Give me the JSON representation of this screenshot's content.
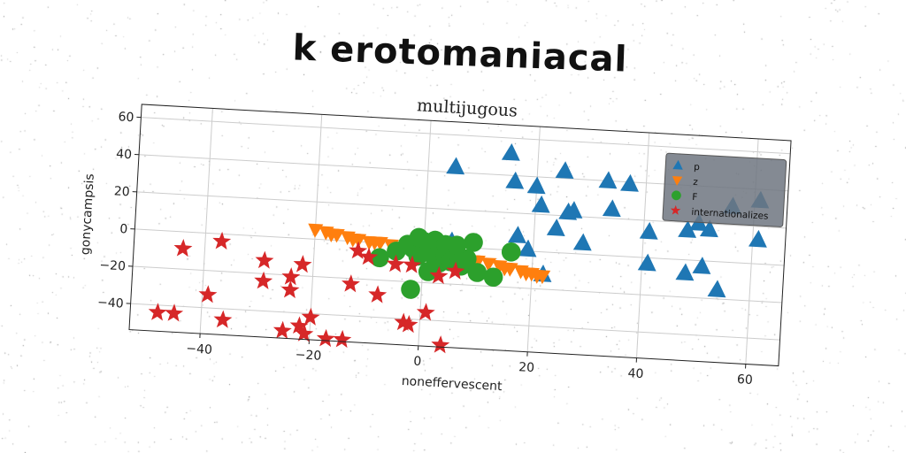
{
  "figure_title": "k erotomaniacal",
  "chart_data": {
    "type": "scatter",
    "title": "multijugous",
    "xlabel": "noneffervescent",
    "ylabel": "gonycampsis",
    "xlim": [
      -53,
      66
    ],
    "ylim": [
      -54,
      67
    ],
    "xticks": [
      -40,
      -20,
      0,
      20,
      40,
      60
    ],
    "yticks": [
      -40,
      -20,
      0,
      20,
      40,
      60
    ],
    "xtick_labels": [
      "−40",
      "−20",
      "0",
      "20",
      "40",
      "60"
    ],
    "ytick_labels": [
      "−40",
      "−20",
      "0",
      "20",
      "40",
      "60"
    ],
    "grid": true,
    "legend_position": "top-right",
    "series": [
      {
        "name": "p",
        "marker": "triangle",
        "color": "#1f77b4",
        "points": [
          [
            5,
            43
          ],
          [
            15,
            52
          ],
          [
            16,
            37
          ],
          [
            20,
            35
          ],
          [
            21,
            25
          ],
          [
            24,
            13
          ],
          [
            25,
            44
          ],
          [
            26,
            22
          ],
          [
            27,
            23
          ],
          [
            29,
            6
          ],
          [
            33,
            40
          ],
          [
            34,
            25
          ],
          [
            37,
            39
          ],
          [
            41,
            14
          ],
          [
            41,
            -3
          ],
          [
            48,
            16
          ],
          [
            48,
            -7
          ],
          [
            51,
            -3
          ],
          [
            50,
            20
          ],
          [
            52,
            17
          ],
          [
            54,
            -15
          ],
          [
            56,
            30
          ],
          [
            61,
            13
          ],
          [
            61,
            34
          ],
          [
            17,
            8
          ],
          [
            19,
            1
          ],
          [
            22,
            -12
          ],
          [
            5,
            3
          ]
        ]
      },
      {
        "name": "z",
        "marker": "triangle-down",
        "color": "#ff7f0e",
        "points": [
          [
            -20,
            5
          ],
          [
            -18,
            4
          ],
          [
            -16,
            3
          ],
          [
            -14,
            2
          ],
          [
            -12,
            1
          ],
          [
            -10,
            0
          ],
          [
            -8,
            0
          ],
          [
            -6,
            -1
          ],
          [
            -4,
            -2
          ],
          [
            -2,
            -2
          ],
          [
            0,
            -3
          ],
          [
            2,
            -4
          ],
          [
            4,
            -5
          ],
          [
            6,
            -6
          ],
          [
            8,
            -6
          ],
          [
            10,
            -7
          ],
          [
            12,
            -8
          ],
          [
            14,
            -9
          ],
          [
            16,
            -10
          ],
          [
            18,
            -11
          ],
          [
            20,
            -12
          ],
          [
            22,
            -13
          ],
          [
            -17,
            3
          ],
          [
            -13,
            1
          ],
          [
            -9,
            0
          ],
          [
            3,
            -4
          ],
          [
            9,
            -7
          ],
          [
            15,
            -10
          ],
          [
            19,
            -12
          ],
          [
            21,
            -13
          ]
        ]
      },
      {
        "name": "F",
        "marker": "circle",
        "color": "#2ca02c",
        "points": [
          [
            -8,
            -8
          ],
          [
            -5,
            -4
          ],
          [
            -3,
            0
          ],
          [
            -2,
            -2
          ],
          [
            -1,
            -6
          ],
          [
            0,
            2
          ],
          [
            0,
            -3
          ],
          [
            1,
            -1
          ],
          [
            2,
            3
          ],
          [
            2,
            -6
          ],
          [
            3,
            -2
          ],
          [
            3,
            -9
          ],
          [
            4,
            1
          ],
          [
            4,
            -5
          ],
          [
            5,
            -8
          ],
          [
            6,
            -3
          ],
          [
            7,
            -10
          ],
          [
            8,
            -6
          ],
          [
            9,
            3
          ],
          [
            10,
            -13
          ],
          [
            13,
            -15
          ],
          [
            16,
            -1
          ],
          [
            -2,
            -24
          ],
          [
            1,
            -14
          ],
          [
            -1,
            4
          ],
          [
            6,
            1
          ]
        ]
      },
      {
        "name": "internationalizes",
        "marker": "star",
        "color": "#d62728",
        "points": [
          [
            -48,
            -44
          ],
          [
            -45,
            -44
          ],
          [
            -44,
            -9
          ],
          [
            -39,
            -33
          ],
          [
            -37,
            -4
          ],
          [
            -36,
            -46
          ],
          [
            -29,
            -13
          ],
          [
            -29,
            -24
          ],
          [
            -25,
            -50
          ],
          [
            -24,
            -28
          ],
          [
            -24,
            -21
          ],
          [
            -22,
            -14
          ],
          [
            -22,
            -47
          ],
          [
            -21,
            -51
          ],
          [
            -20,
            -42
          ],
          [
            -17,
            -53
          ],
          [
            -14,
            -53
          ],
          [
            -13,
            -23
          ],
          [
            -12,
            -5
          ],
          [
            -10,
            -8
          ],
          [
            -8,
            -28
          ],
          [
            -5,
            -11
          ],
          [
            -3,
            -42
          ],
          [
            -2,
            -43
          ],
          [
            -2,
            -11
          ],
          [
            1,
            -36
          ],
          [
            3,
            -16
          ],
          [
            4,
            -53
          ],
          [
            6,
            -13
          ]
        ]
      }
    ]
  }
}
